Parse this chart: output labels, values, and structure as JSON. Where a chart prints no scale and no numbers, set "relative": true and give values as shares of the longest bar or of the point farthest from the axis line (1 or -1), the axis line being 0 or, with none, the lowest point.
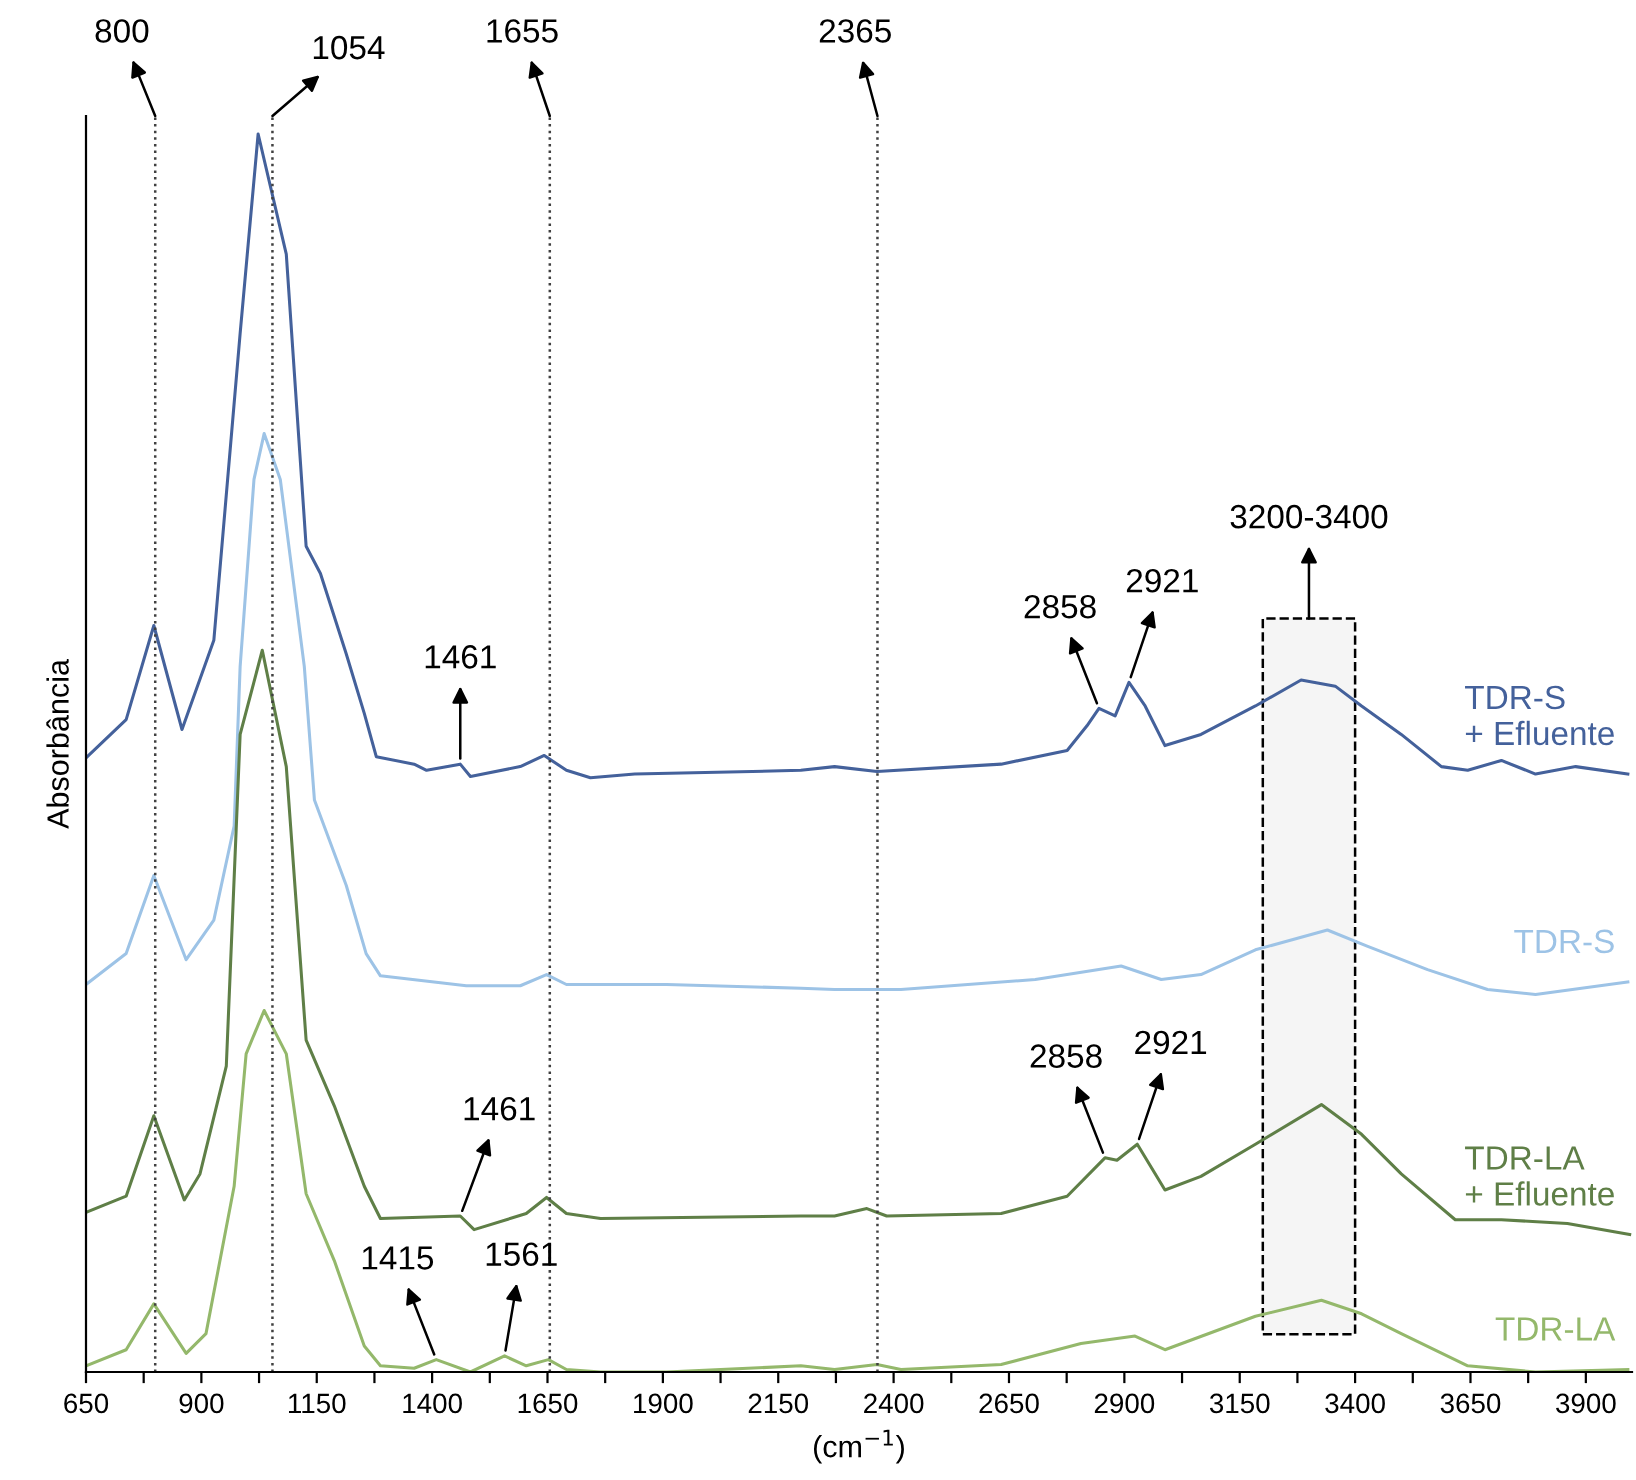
{
  "chart_data": {
    "type": "line",
    "relative": true,
    "xlabel": "(cm$^{−1}$)",
    "ylabel": "Absorbância",
    "legend": false,
    "grid": false,
    "marker": "none",
    "line_style": "solid",
    "xlim": [
      650,
      4000
    ],
    "xticks": [
      650,
      {
        "value": 775,
        "label": null
      },
      900,
      {
        "value": 1025,
        "label": null
      },
      1150,
      {
        "value": 1275,
        "label": null
      },
      1400,
      {
        "value": 1525,
        "label": null
      },
      1650,
      {
        "value": 1775,
        "label": null
      },
      1900,
      {
        "value": 2025,
        "label": null
      },
      2150,
      {
        "value": 2275,
        "label": null
      },
      2400,
      {
        "value": 2525,
        "label": null
      },
      2650,
      {
        "value": 2775,
        "label": null
      },
      2900,
      {
        "value": 3025,
        "label": null
      },
      3150,
      {
        "value": 3275,
        "label": null
      },
      3400,
      {
        "value": 3525,
        "label": null
      },
      3650,
      {
        "value": 3775,
        "label": null
      },
      3900
    ],
    "tick_labels": "x",
    "series": [
      {
        "name": "TDR-S\n+ Efluente",
        "color": "#44619b",
        "x": [
          650,
          737,
          797,
          858,
          927,
          984,
          1023,
          1084,
          1127,
          1158,
          1214,
          1253,
          1279,
          1361,
          1388,
          1461,
          1483,
          1591,
          1643,
          1691,
          1743,
          1839,
          2199,
          2272,
          2364,
          2633,
          2776,
          2819,
          2845,
          2880,
          2910,
          2945,
          2988,
          3066,
          3184,
          3283,
          3357,
          3414,
          3500,
          3587,
          3644,
          3717,
          3791,
          3878,
          3991
        ],
        "values": [
          0.496,
          0.527,
          0.603,
          0.519,
          0.591,
          0.839,
          1.0,
          0.903,
          0.667,
          0.645,
          0.58,
          0.532,
          0.497,
          0.491,
          0.486,
          0.491,
          0.481,
          0.489,
          0.498,
          0.486,
          0.48,
          0.483,
          0.486,
          0.489,
          0.485,
          0.491,
          0.502,
          0.522,
          0.536,
          0.53,
          0.557,
          0.538,
          0.506,
          0.515,
          0.538,
          0.559,
          0.554,
          0.538,
          0.515,
          0.489,
          0.486,
          0.494,
          0.483,
          0.489,
          0.483
        ]
      },
      {
        "name": "TDR-S",
        "color": "#9dc3e6",
        "x": [
          650,
          737,
          797,
          867,
          927,
          971,
          984,
          1014,
          1036,
          1071,
          1123,
          1145,
          1214,
          1257,
          1288,
          1474,
          1591,
          1648,
          1691,
          1908,
          2199,
          2272,
          2416,
          2707,
          2893,
          2980,
          3066,
          3184,
          3340,
          3426,
          3557,
          3687,
          3791,
          3991
        ],
        "values": [
          0.313,
          0.338,
          0.401,
          0.333,
          0.365,
          0.441,
          0.57,
          0.721,
          0.758,
          0.721,
          0.57,
          0.462,
          0.393,
          0.338,
          0.32,
          0.312,
          0.312,
          0.321,
          0.313,
          0.313,
          0.31,
          0.309,
          0.309,
          0.317,
          0.328,
          0.317,
          0.321,
          0.341,
          0.357,
          0.344,
          0.325,
          0.309,
          0.305,
          0.315
        ]
      },
      {
        "name": "TDR-LA\n+ Efluente",
        "color": "#5f7f47",
        "x": [
          650,
          737,
          797,
          863,
          897,
          954,
          984,
          1032,
          1084,
          1127,
          1188,
          1253,
          1288,
          1461,
          1491,
          1604,
          1648,
          1691,
          1765,
          2199,
          2272,
          2342,
          2385,
          2633,
          2776,
          2858,
          2884,
          2928,
          2988,
          3066,
          3184,
          3327,
          3414,
          3500,
          3617,
          3717,
          3860,
          3995
        ],
        "values": [
          0.129,
          0.142,
          0.207,
          0.139,
          0.16,
          0.247,
          0.515,
          0.583,
          0.489,
          0.268,
          0.215,
          0.15,
          0.124,
          0.126,
          0.115,
          0.128,
          0.141,
          0.128,
          0.124,
          0.126,
          0.126,
          0.132,
          0.126,
          0.128,
          0.142,
          0.173,
          0.171,
          0.184,
          0.147,
          0.158,
          0.184,
          0.216,
          0.192,
          0.16,
          0.123,
          0.123,
          0.12,
          0.111
        ]
      },
      {
        "name": "TDR-LA",
        "color": "#94b86b",
        "x": [
          650,
          737,
          797,
          867,
          910,
          971,
          997,
          1036,
          1084,
          1127,
          1188,
          1253,
          1288,
          1361,
          1409,
          1483,
          1557,
          1604,
          1652,
          1691,
          1765,
          1908,
          2199,
          2272,
          2364,
          2416,
          2633,
          2806,
          2923,
          2988,
          3184,
          3327,
          3414,
          3500,
          3644,
          3791,
          3991
        ],
        "values": [
          0.005,
          0.018,
          0.055,
          0.015,
          0.031,
          0.15,
          0.257,
          0.292,
          0.257,
          0.144,
          0.09,
          0.021,
          0.005,
          0.003,
          0.01,
          0.0,
          0.013,
          0.005,
          0.01,
          0.002,
          0.0,
          0.0,
          0.005,
          0.002,
          0.006,
          0.002,
          0.006,
          0.023,
          0.029,
          0.018,
          0.045,
          0.058,
          0.047,
          0.031,
          0.005,
          0.0,
          0.002
        ]
      }
    ],
    "ref_lines": [
      {
        "axis": "x",
        "value": 800,
        "label": "800",
        "line_style": "dotted",
        "color": "#404040"
      },
      {
        "axis": "x",
        "value": 1054,
        "label": "1054",
        "line_style": "dotted",
        "color": "#404040"
      },
      {
        "axis": "x",
        "value": 1655,
        "label": "1655",
        "line_style": "dotted",
        "color": "#404040"
      },
      {
        "axis": "x",
        "value": 2365,
        "label": "2365",
        "line_style": "dotted",
        "color": "#404040"
      }
    ],
    "bands": [
      {
        "axis": "x",
        "from": 3200,
        "to": 3400,
        "label": "3200-3400"
      }
    ],
    "annotations": [
      {
        "text": "1461",
        "x": 1461,
        "y": 0.491
      },
      {
        "text": "2858",
        "x": 2845,
        "y": 0.536
      },
      {
        "text": "2921",
        "x": 2910,
        "y": 0.557
      },
      {
        "text": "1461",
        "x": 1461,
        "y": 0.126
      },
      {
        "text": "2858",
        "x": 2858,
        "y": 0.173
      },
      {
        "text": "2921",
        "x": 2928,
        "y": 0.184
      },
      {
        "text": "1415",
        "x": 1409,
        "y": 0.01
      },
      {
        "text": "1561",
        "x": 1557,
        "y": 0.013
      }
    ]
  }
}
